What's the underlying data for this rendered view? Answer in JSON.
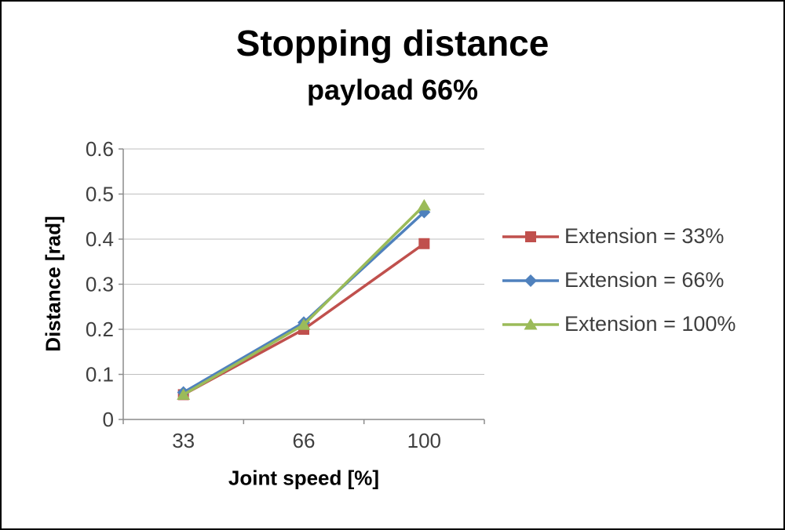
{
  "chart_data": {
    "type": "line",
    "title": "Stopping distance",
    "subtitle": "payload 66%",
    "xlabel": "Joint speed [%]",
    "ylabel": "Distance [rad]",
    "categories": [
      "33",
      "66",
      "100"
    ],
    "series": [
      {
        "name": "Extension = 33%",
        "marker": "square",
        "color": "#c0504d",
        "values": [
          0.055,
          0.2,
          0.39
        ]
      },
      {
        "name": "Extension = 66%",
        "marker": "diamond",
        "color": "#4f81bd",
        "values": [
          0.06,
          0.215,
          0.46
        ]
      },
      {
        "name": "Extension = 100%",
        "marker": "triangle",
        "color": "#9bbb59",
        "values": [
          0.055,
          0.21,
          0.475
        ]
      }
    ],
    "ylim": [
      0,
      0.6
    ],
    "ytick_step": 0.1,
    "grid": "horizontal",
    "legend_position": "right",
    "colors": {
      "gridline": "#bfbfbf",
      "axis": "#8c8c8c",
      "tick_text": "#3f3f3f"
    }
  }
}
